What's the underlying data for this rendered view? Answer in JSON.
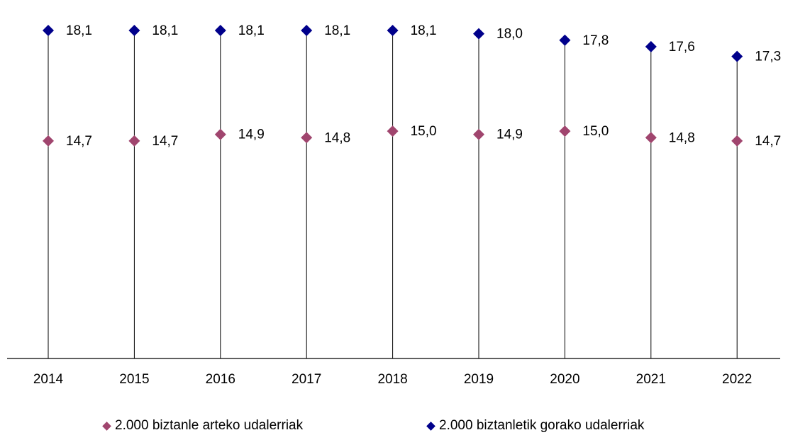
{
  "chart_data": {
    "type": "scatter",
    "categories": [
      "2014",
      "2015",
      "2016",
      "2017",
      "2018",
      "2019",
      "2020",
      "2021",
      "2022"
    ],
    "series": [
      {
        "name": "2.000 biztanle arteko udalerriak",
        "values": [
          14.7,
          14.7,
          14.9,
          14.8,
          15.0,
          14.9,
          15.0,
          14.8,
          14.7
        ],
        "labels": [
          "14,7",
          "14,7",
          "14,9",
          "14,8",
          "15,0",
          "14,9",
          "15,0",
          "14,8",
          "14,7"
        ],
        "color": "#a0456e"
      },
      {
        "name": "2.000 biztanletik gorako udalerriak",
        "values": [
          18.1,
          18.1,
          18.1,
          18.1,
          18.1,
          18.0,
          17.8,
          17.6,
          17.3
        ],
        "labels": [
          "18,1",
          "18,1",
          "18,1",
          "18,1",
          "18,1",
          "18,0",
          "17,8",
          "17,6",
          "17,3"
        ],
        "color": "#00008b"
      }
    ],
    "ylim": [
      8,
      18.1
    ],
    "grid": false,
    "legend_position": "bottom",
    "drop_lines": true
  }
}
